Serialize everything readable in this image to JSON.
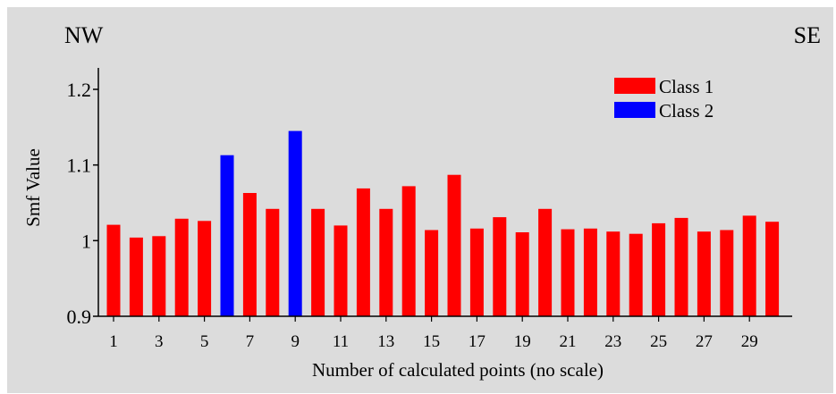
{
  "corner_labels": {
    "left": "NW",
    "right": "SE"
  },
  "colors": {
    "class1": "#ff0000",
    "class2": "#0000ff",
    "panel": "#dcdcdc",
    "axis": "#000000"
  },
  "chart_data": {
    "type": "bar",
    "xlabel": "Number of calculated points (no scale)",
    "ylabel": "Smf  Value",
    "ylim": [
      0.9,
      1.22
    ],
    "yticks": [
      "0.9",
      "1",
      "1.1",
      "1.2"
    ],
    "ytick_values": [
      0.9,
      1.0,
      1.1,
      1.2
    ],
    "xtick_labels": [
      "1",
      "3",
      "5",
      "7",
      "9",
      "11",
      "13",
      "15",
      "17",
      "19",
      "21",
      "23",
      "25",
      "27",
      "29"
    ],
    "xtick_values": [
      1,
      3,
      5,
      7,
      9,
      11,
      13,
      15,
      17,
      19,
      21,
      23,
      25,
      27,
      29
    ],
    "legend": {
      "position": "top-right",
      "entries": [
        {
          "label": "Class 1",
          "class": 1
        },
        {
          "label": "Class 2",
          "class": 2
        }
      ]
    },
    "points": [
      1,
      2,
      3,
      4,
      5,
      6,
      7,
      8,
      9,
      10,
      11,
      12,
      13,
      14,
      15,
      16,
      17,
      18,
      19,
      20,
      21,
      22,
      23,
      24,
      25,
      26,
      27,
      28,
      29,
      30
    ],
    "values": [
      1.021,
      1.004,
      1.006,
      1.029,
      1.026,
      1.113,
      1.063,
      1.042,
      1.145,
      1.042,
      1.02,
      1.069,
      1.042,
      1.072,
      1.014,
      1.087,
      1.016,
      1.031,
      1.011,
      1.042,
      1.015,
      1.016,
      1.012,
      1.009,
      1.023,
      1.03,
      1.012,
      1.014,
      1.033,
      1.025
    ],
    "classes": [
      1,
      1,
      1,
      1,
      1,
      2,
      1,
      1,
      2,
      1,
      1,
      1,
      1,
      1,
      1,
      1,
      1,
      1,
      1,
      1,
      1,
      1,
      1,
      1,
      1,
      1,
      1,
      1,
      1,
      1
    ]
  }
}
